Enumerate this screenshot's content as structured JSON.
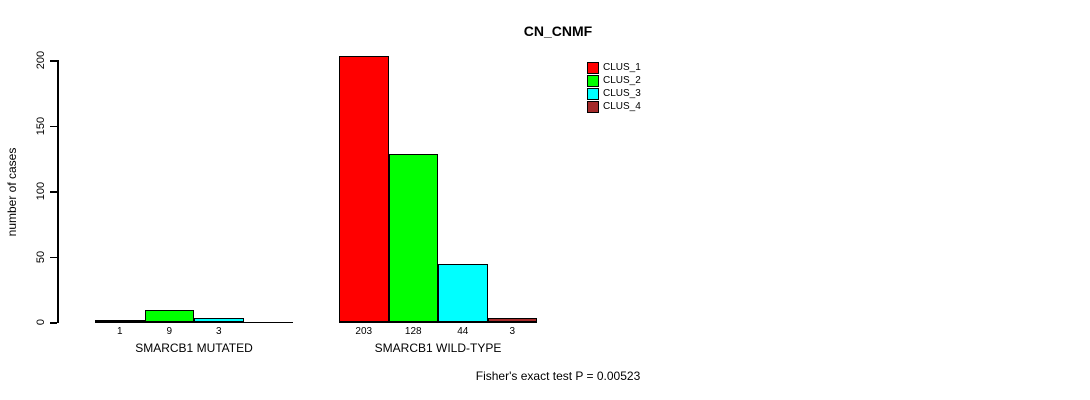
{
  "chart_data": {
    "type": "bar",
    "title": "CN_CNMF",
    "ylabel": "number of cases",
    "ylim": [
      0,
      200
    ],
    "yticks": [
      0,
      50,
      100,
      150,
      200
    ],
    "grid": false,
    "series": [
      "CLUS_1",
      "CLUS_2",
      "CLUS_3",
      "CLUS_4"
    ],
    "colors": [
      "#FF0000",
      "#00FF00",
      "#00FFFF",
      "#A52A2A"
    ],
    "legend": {
      "position": "top-right",
      "entries": [
        {
          "label": "CLUS_1",
          "color": "#FF0000"
        },
        {
          "label": "CLUS_2",
          "color": "#00FF00"
        },
        {
          "label": "CLUS_3",
          "color": "#00FFFF"
        },
        {
          "label": "CLUS_4",
          "color": "#A52A2A"
        }
      ]
    },
    "groups": [
      {
        "label": "SMARCB1 MUTATED",
        "values": [
          1,
          9,
          3,
          0
        ],
        "bar_labels": [
          "1",
          "9",
          "3",
          ""
        ]
      },
      {
        "label": "SMARCB1 WILD-TYPE",
        "values": [
          203,
          128,
          44,
          3
        ],
        "bar_labels": [
          "203",
          "128",
          "44",
          "3"
        ]
      }
    ],
    "footnote": "Fisher's exact test P = 0.00523"
  }
}
